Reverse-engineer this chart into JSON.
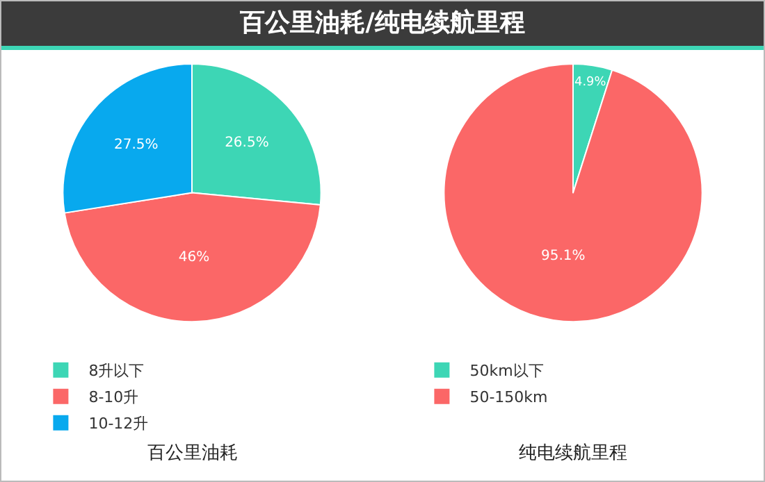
{
  "chart_data": [
    {
      "type": "pie",
      "title": "百公里油耗/纯电续航里程",
      "xlabel": "百公里油耗",
      "categories": [
        "8升以下",
        "8-10升",
        "10-12升"
      ],
      "values": [
        26.5,
        46,
        27.5
      ],
      "value_labels": [
        "26.5%",
        "46%",
        "27.5%"
      ],
      "colors": [
        "#3dd6b5",
        "#fb6767",
        "#08a9ee"
      ],
      "legend": "bottom"
    },
    {
      "type": "pie",
      "xlabel": "纯电续航里程",
      "categories": [
        "50km以下",
        "50-150km"
      ],
      "values": [
        4.9,
        95.1
      ],
      "value_labels": [
        "4.9%",
        "95.1%"
      ],
      "colors": [
        "#3dd6b5",
        "#fb6767"
      ],
      "legend": "bottom"
    }
  ]
}
